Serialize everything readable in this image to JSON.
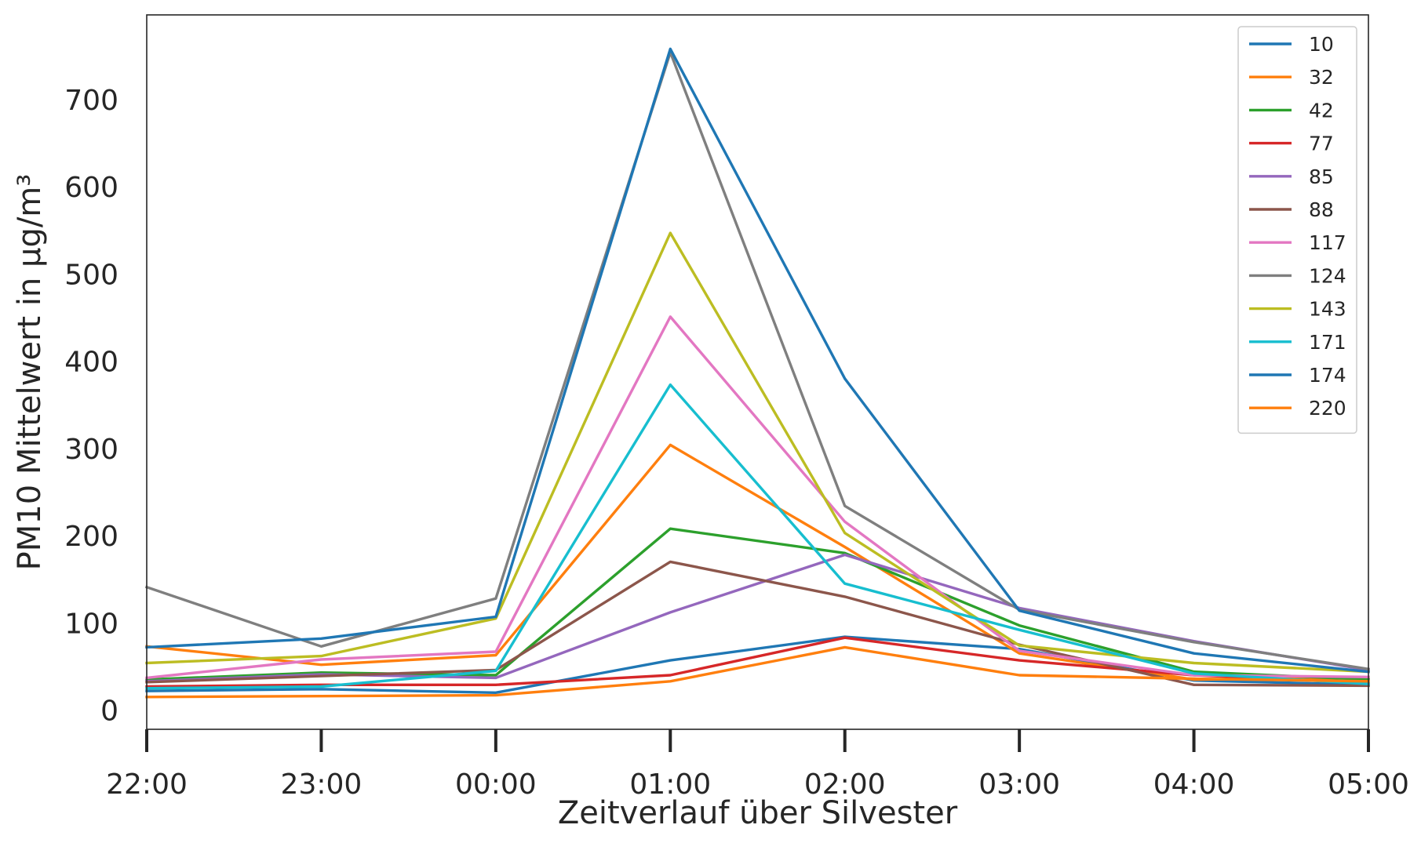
{
  "chart_data": {
    "type": "line",
    "title": "",
    "xlabel": "Zeitverlauf über Silvester",
    "ylabel": "PM10 Mittelwert in µg/m³",
    "categories": [
      "22:00",
      "23:00",
      "00:00",
      "01:00",
      "02:00",
      "03:00",
      "04:00",
      "05:00"
    ],
    "yticks": [
      "0",
      "100",
      "200",
      "300",
      "400",
      "500",
      "600",
      "700"
    ],
    "ylim": [
      -22,
      797
    ],
    "grid": false,
    "legend": "top-right",
    "series": [
      {
        "name": "10",
        "color": "#1f77b4",
        "values": [
          22,
          24,
          20,
          57,
          84,
          70,
          34,
          29
        ]
      },
      {
        "name": "32",
        "color": "#ff7f0e",
        "values": [
          73,
          52,
          63,
          304,
          187,
          65,
          35,
          37
        ]
      },
      {
        "name": "42",
        "color": "#2ca02c",
        "values": [
          35,
          43,
          40,
          208,
          180,
          97,
          44,
          35
        ]
      },
      {
        "name": "77",
        "color": "#d62728",
        "values": [
          27,
          29,
          29,
          40,
          83,
          57,
          40,
          31
        ]
      },
      {
        "name": "85",
        "color": "#9467bd",
        "values": [
          33,
          41,
          37,
          112,
          178,
          117,
          79,
          46
        ]
      },
      {
        "name": "88",
        "color": "#8c564b",
        "values": [
          32,
          39,
          46,
          170,
          130,
          75,
          29,
          28
        ]
      },
      {
        "name": "117",
        "color": "#e377c2",
        "values": [
          37,
          58,
          67,
          451,
          216,
          68,
          40,
          38
        ]
      },
      {
        "name": "124",
        "color": "#7f7f7f",
        "values": [
          141,
          73,
          128,
          754,
          234,
          115,
          78,
          47
        ]
      },
      {
        "name": "143",
        "color": "#bcbd22",
        "values": [
          54,
          62,
          105,
          547,
          203,
          74,
          54,
          44
        ]
      },
      {
        "name": "171",
        "color": "#17becf",
        "values": [
          25,
          27,
          45,
          373,
          145,
          92,
          42,
          30
        ]
      },
      {
        "name": "174",
        "color": "#1f77b4",
        "values": [
          72,
          82,
          107,
          758,
          380,
          114,
          65,
          44
        ]
      },
      {
        "name": "220",
        "color": "#ff7f0e",
        "values": [
          15,
          16,
          17,
          33,
          72,
          40,
          36,
          33
        ]
      }
    ]
  }
}
